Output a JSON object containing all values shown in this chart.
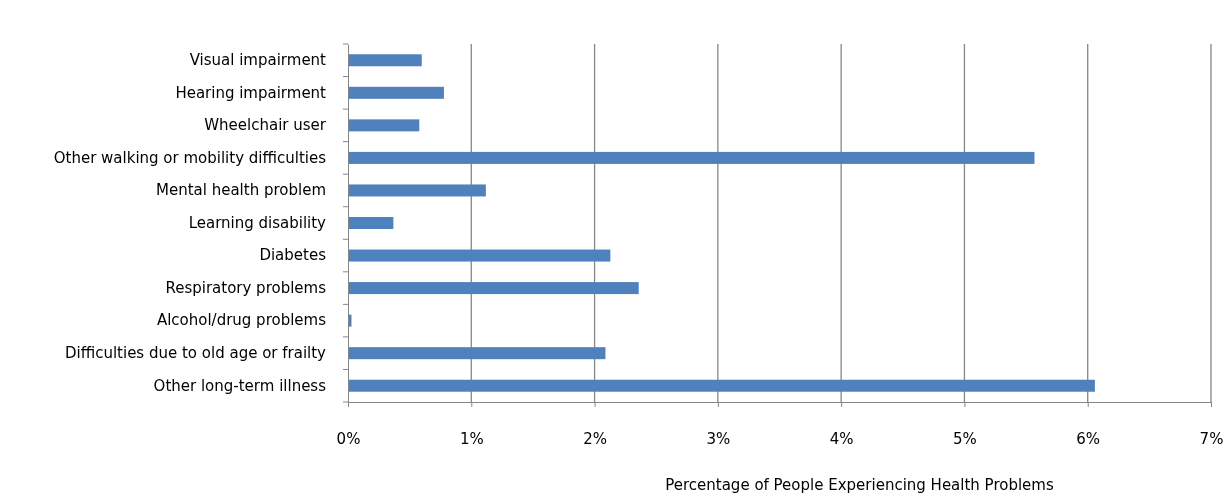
{
  "chart_data": {
    "type": "bar",
    "orientation": "horizontal",
    "xlabel": "Percentage of People Experiencing Health Problems",
    "categories": [
      "Visual impairment",
      "Hearing impairment",
      "Wheelchair user",
      "Other walking or mobility difficulties",
      "Mental health problem",
      "Learning disability",
      "Diabetes",
      "Respiratory problems",
      "Alcohol/drug problems",
      "Difficulties due to old age or frailty",
      "Other long-term illness"
    ],
    "values": [
      0.59,
      0.77,
      0.57,
      5.56,
      1.11,
      0.36,
      2.12,
      2.35,
      0.02,
      2.08,
      6.05
    ],
    "color": "#4f81bd",
    "xlim": [
      0,
      7
    ],
    "xticks": [
      {
        "value": 0,
        "label": "0%"
      },
      {
        "value": 1,
        "label": "1%"
      },
      {
        "value": 2,
        "label": "2%"
      },
      {
        "value": 3,
        "label": "3%"
      },
      {
        "value": 4,
        "label": "4%"
      },
      {
        "value": 5,
        "label": "5%"
      },
      {
        "value": 6,
        "label": "6%"
      },
      {
        "value": 7,
        "label": "7%"
      }
    ],
    "grid": "x"
  }
}
